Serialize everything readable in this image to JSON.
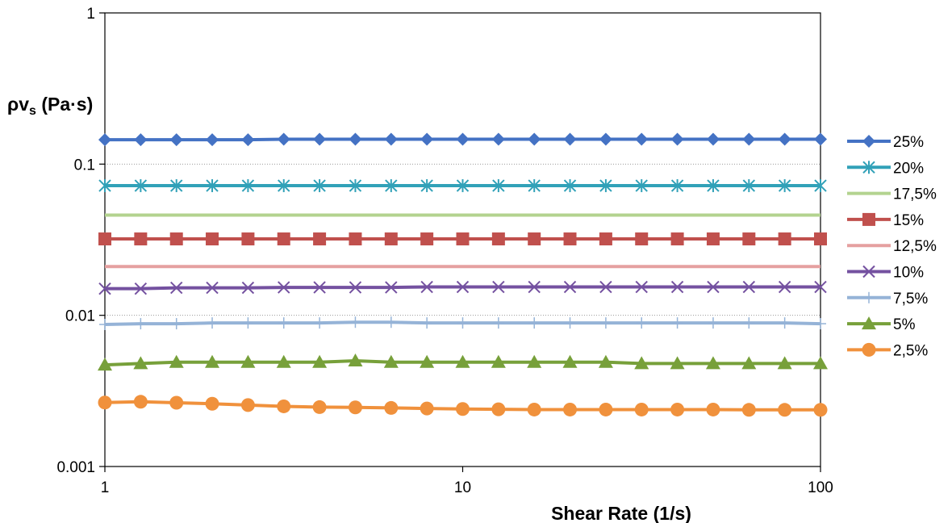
{
  "chart_data": {
    "type": "line",
    "xscale": "log",
    "yscale": "log",
    "xlim": [
      1,
      100
    ],
    "ylim": [
      0.001,
      1
    ],
    "xlabel": "Shear Rate (1/s)",
    "ylabel": "ρvs (Pa·s)",
    "ylabel_main": "ρv",
    "ylabel_sub": "s",
    "ylabel_rest": " (Pa·s)",
    "x_ticks": [
      "1",
      "10",
      "100"
    ],
    "y_ticks": [
      "0.001",
      "0.01",
      "0.1",
      "1"
    ],
    "grid": "horizontal dotted at major y ticks",
    "legend_position": "right",
    "x": [
      1,
      1.259,
      1.585,
      1.995,
      2.512,
      3.162,
      3.981,
      5.012,
      6.31,
      7.943,
      10,
      12.59,
      15.85,
      19.95,
      25.12,
      31.62,
      39.81,
      50.12,
      63.1,
      79.43,
      100
    ],
    "series": [
      {
        "name": "25%",
        "color": "#4472C4",
        "marker": "diamond",
        "values": [
          0.145,
          0.145,
          0.145,
          0.145,
          0.145,
          0.146,
          0.146,
          0.146,
          0.146,
          0.146,
          0.146,
          0.146,
          0.146,
          0.146,
          0.146,
          0.146,
          0.146,
          0.146,
          0.146,
          0.146,
          0.146
        ]
      },
      {
        "name": "20%",
        "color": "#31A1B8",
        "marker": "asterisk",
        "values": [
          0.072,
          0.072,
          0.072,
          0.072,
          0.072,
          0.072,
          0.072,
          0.072,
          0.072,
          0.072,
          0.072,
          0.072,
          0.072,
          0.072,
          0.072,
          0.072,
          0.072,
          0.072,
          0.072,
          0.072,
          0.072
        ]
      },
      {
        "name": "17,5%",
        "color": "#B3D38F",
        "marker": "none",
        "values": [
          0.046,
          0.046,
          0.046,
          0.046,
          0.046,
          0.046,
          0.046,
          0.046,
          0.046,
          0.046,
          0.046,
          0.046,
          0.046,
          0.046,
          0.046,
          0.046,
          0.046,
          0.046,
          0.046,
          0.046,
          0.046
        ]
      },
      {
        "name": "15%",
        "color": "#C0504D",
        "marker": "square",
        "values": [
          0.032,
          0.032,
          0.032,
          0.032,
          0.032,
          0.032,
          0.032,
          0.032,
          0.032,
          0.032,
          0.032,
          0.032,
          0.032,
          0.032,
          0.032,
          0.032,
          0.032,
          0.032,
          0.032,
          0.032,
          0.032
        ]
      },
      {
        "name": "12,5%",
        "color": "#E5A0A0",
        "marker": "none",
        "values": [
          0.021,
          0.021,
          0.021,
          0.021,
          0.021,
          0.021,
          0.021,
          0.021,
          0.021,
          0.021,
          0.021,
          0.021,
          0.021,
          0.021,
          0.021,
          0.021,
          0.021,
          0.021,
          0.021,
          0.021,
          0.021
        ]
      },
      {
        "name": "10%",
        "color": "#7451A0",
        "marker": "x",
        "values": [
          0.015,
          0.015,
          0.0152,
          0.0152,
          0.0152,
          0.0153,
          0.0153,
          0.0153,
          0.0153,
          0.0154,
          0.0154,
          0.0154,
          0.0154,
          0.0154,
          0.0154,
          0.0154,
          0.0154,
          0.0154,
          0.0154,
          0.0154,
          0.0154
        ]
      },
      {
        "name": "7,5%",
        "color": "#95B3D7",
        "marker": "plus",
        "values": [
          0.0087,
          0.0088,
          0.0088,
          0.0089,
          0.0089,
          0.0089,
          0.0089,
          0.009,
          0.009,
          0.0089,
          0.0089,
          0.0089,
          0.0089,
          0.0089,
          0.0089,
          0.0089,
          0.0089,
          0.0089,
          0.0089,
          0.0089,
          0.0088
        ]
      },
      {
        "name": "5%",
        "color": "#77A03A",
        "marker": "triangle",
        "values": [
          0.0047,
          0.0048,
          0.0049,
          0.0049,
          0.0049,
          0.0049,
          0.0049,
          0.005,
          0.0049,
          0.0049,
          0.0049,
          0.0049,
          0.0049,
          0.0049,
          0.0049,
          0.0048,
          0.0048,
          0.0048,
          0.0048,
          0.0048,
          0.0048
        ]
      },
      {
        "name": "2,5%",
        "color": "#F0913C",
        "marker": "circle",
        "values": [
          0.00265,
          0.00268,
          0.00264,
          0.0026,
          0.00255,
          0.0025,
          0.00247,
          0.00246,
          0.00244,
          0.00242,
          0.0024,
          0.00239,
          0.00238,
          0.00238,
          0.00238,
          0.00238,
          0.00238,
          0.00238,
          0.00237,
          0.00237,
          0.00237
        ]
      }
    ]
  }
}
